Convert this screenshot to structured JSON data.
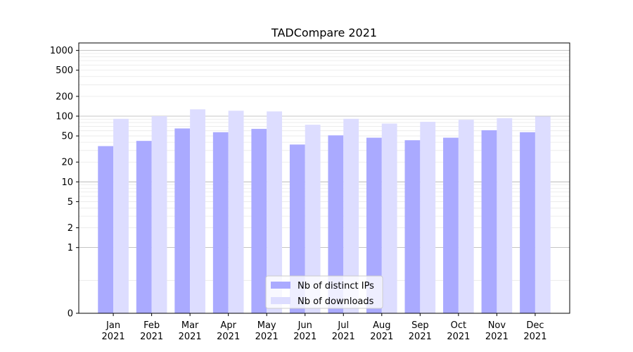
{
  "chart_data": {
    "type": "bar",
    "title": "TADCompare 2021",
    "categories": [
      "Jan\n2021",
      "Feb\n2021",
      "Mar\n2021",
      "Apr\n2021",
      "May\n2021",
      "Jun\n2021",
      "Jul\n2021",
      "Aug\n2021",
      "Sep\n2021",
      "Oct\n2021",
      "Nov\n2021",
      "Dec\n2021"
    ],
    "series": [
      {
        "name": "Nb of distinct IPs",
        "color": "#aaaaff",
        "values": [
          35,
          42,
          65,
          57,
          64,
          37,
          51,
          47,
          43,
          47,
          61,
          57
        ]
      },
      {
        "name": "Nb of downloads",
        "color": "#ddddff",
        "values": [
          91,
          100,
          127,
          121,
          118,
          74,
          91,
          77,
          82,
          88,
          93,
          99
        ]
      }
    ],
    "y_scale": "symlog",
    "yticks": [
      0,
      1,
      2,
      5,
      10,
      20,
      50,
      100,
      200,
      500,
      1000
    ],
    "ylim": [
      0,
      1300
    ],
    "grid": true,
    "legend_position": "lower-center",
    "xlabel": "",
    "ylabel": ""
  }
}
